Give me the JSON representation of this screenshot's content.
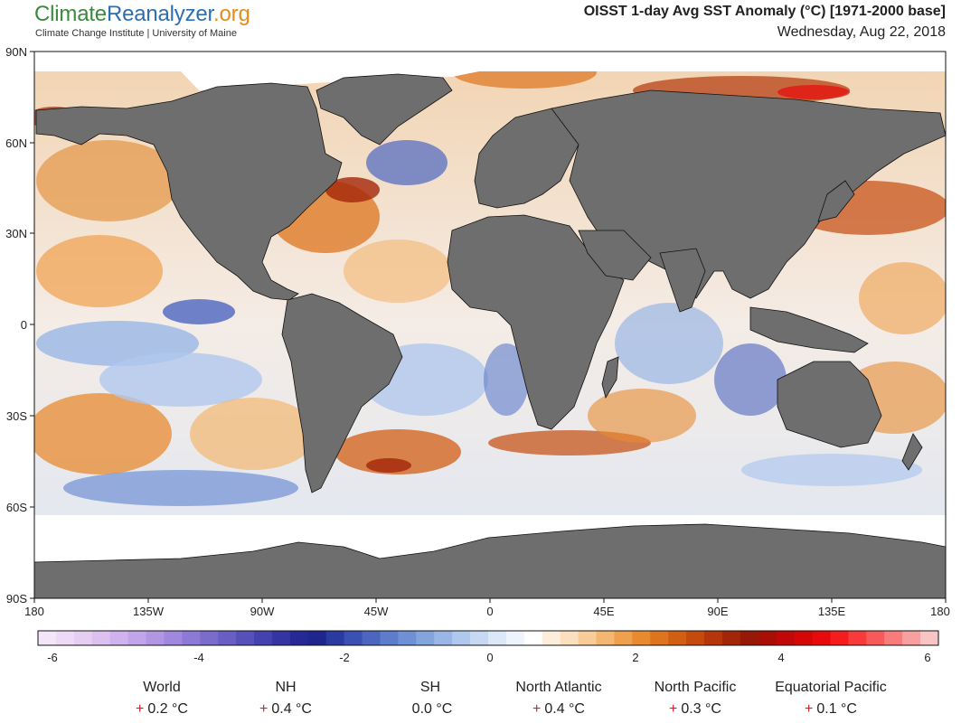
{
  "brand": {
    "part1": "Climate",
    "part2": "Reanalyzer",
    "part3": ".org",
    "subtitle": "Climate Change Institute | University of Maine"
  },
  "title": {
    "main": "OISST 1-day Avg SST Anomaly (°C) [1971-2000 base]",
    "date": "Wednesday, Aug 22, 2018"
  },
  "map": {
    "lat_labels": [
      "90N",
      "60N",
      "30N",
      "0",
      "30S",
      "60S",
      "90S"
    ],
    "lon_labels": [
      "180",
      "135W",
      "90W",
      "45W",
      "0",
      "45E",
      "90E",
      "135E",
      "180"
    ],
    "land_color": "#6e6e6e",
    "sea_ice_color": "#ffffff",
    "lat_range": [
      -90,
      90
    ],
    "lon_range": [
      -180,
      180
    ]
  },
  "colorbar": {
    "tick_labels": [
      "-6",
      "-4",
      "-2",
      "0",
      "2",
      "4",
      "6"
    ],
    "range": [
      -6,
      6
    ],
    "colors": [
      "#f4e6f8",
      "#eedaf6",
      "#e6cdf4",
      "#dcc0f0",
      "#d0b2ee",
      "#c2a4ea",
      "#b296e4",
      "#a088de",
      "#8c7ad6",
      "#7a6ccd",
      "#685ec4",
      "#5650ba",
      "#4442ae",
      "#3434a2",
      "#262896",
      "#1e268e",
      "#2a3aa0",
      "#3a50b2",
      "#4c66c0",
      "#5e7ccc",
      "#7090d6",
      "#84a4de",
      "#9ab6e6",
      "#b0c8ee",
      "#c6d8f4",
      "#dce8f8",
      "#eef4fc",
      "#ffffff",
      "#fdeedc",
      "#fbdfbe",
      "#f8cc98",
      "#f4b670",
      "#efa04c",
      "#e88a30",
      "#de741e",
      "#d25e14",
      "#c44a0e",
      "#b4360a",
      "#a42608",
      "#961806",
      "#a80e06",
      "#c00808",
      "#d40606",
      "#e80a0a",
      "#f41c1c",
      "#f83a3a",
      "#f85a5a",
      "#f87c7c",
      "#f8a0a0",
      "#f8c4c4"
    ]
  },
  "stats": [
    {
      "name": "World",
      "sign": "+",
      "value": "0.2 °C"
    },
    {
      "name": "NH",
      "sign": "+",
      "value": "0.4 °C"
    },
    {
      "name": "SH",
      "sign": "",
      "value": "0.0 °C"
    },
    {
      "name": "North Atlantic",
      "sign": "+",
      "value": "0.4 °C"
    },
    {
      "name": "North Pacific",
      "sign": "+",
      "value": "0.3 °C"
    },
    {
      "name": "Equatorial Pacific",
      "sign": "+",
      "value": "0.1 °C"
    }
  ]
}
